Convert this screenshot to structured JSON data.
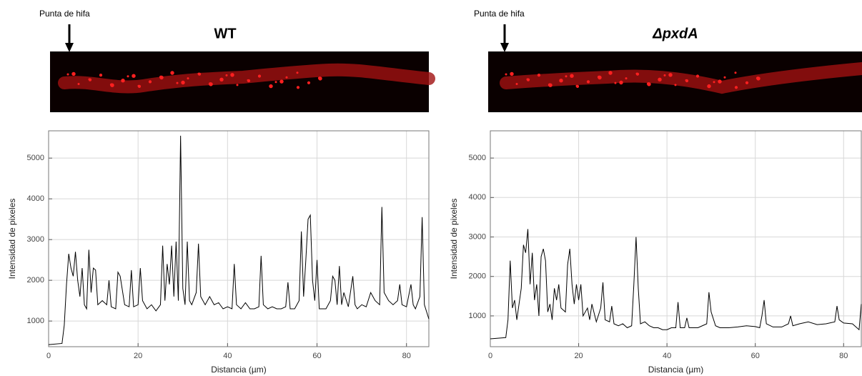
{
  "chart_data": [
    {
      "type": "line",
      "title": "WT",
      "annotation": "Punta de hifa",
      "xlabel": "Distancia (µm)",
      "ylabel": "Intensidad de pixeles",
      "color": "#000000",
      "grid": true,
      "xlim": [
        0,
        85
      ],
      "ylim": [
        370,
        5670
      ],
      "xticks": [
        0,
        20,
        40,
        60,
        80
      ],
      "yticks": [
        1000,
        2000,
        3000,
        4000,
        5000
      ],
      "x": [
        0,
        3,
        3.5,
        4,
        4.5,
        5,
        5.5,
        6,
        6.5,
        7,
        7.5,
        8,
        8.5,
        9,
        9.5,
        10,
        10.5,
        11,
        12,
        13,
        13.5,
        14,
        15,
        15.5,
        16,
        17,
        18,
        18.5,
        19,
        20,
        20.5,
        21,
        22,
        23,
        24,
        25,
        25.5,
        26,
        26.5,
        27,
        27.5,
        28,
        28.5,
        29,
        29.5,
        30,
        30.5,
        31,
        31.5,
        32,
        33,
        33.5,
        34,
        35,
        36,
        37,
        38,
        39,
        40,
        41,
        41.5,
        42,
        43,
        44,
        45,
        46,
        47,
        47.5,
        48,
        49,
        50,
        51,
        52,
        53,
        53.5,
        54,
        55,
        56,
        56.5,
        57,
        57.5,
        58,
        58.5,
        59,
        59.5,
        60,
        60.5,
        61,
        62,
        63,
        63.5,
        64,
        64.5,
        65,
        65.5,
        66,
        67,
        68,
        68.5,
        69,
        70,
        71,
        72,
        73,
        74,
        74.5,
        75,
        76,
        77,
        78,
        78.5,
        79,
        80,
        81,
        81.5,
        82,
        83,
        83.5,
        84,
        85
      ],
      "values": [
        420,
        450,
        900,
        1900,
        2650,
        2300,
        2100,
        2700,
        2000,
        1600,
        2300,
        1400,
        1300,
        2750,
        1700,
        2300,
        2250,
        1400,
        1500,
        1400,
        2000,
        1350,
        1300,
        2200,
        2100,
        1400,
        1350,
        2250,
        1350,
        1400,
        2300,
        1500,
        1300,
        1400,
        1250,
        1400,
        2850,
        1500,
        2400,
        1900,
        2850,
        1600,
        2950,
        1500,
        5550,
        1800,
        1400,
        2950,
        1500,
        1400,
        1700,
        2900,
        1600,
        1400,
        1600,
        1400,
        1450,
        1300,
        1350,
        1300,
        2400,
        1400,
        1300,
        1450,
        1300,
        1300,
        1350,
        2600,
        1400,
        1300,
        1350,
        1300,
        1300,
        1350,
        1950,
        1300,
        1300,
        1500,
        3200,
        1600,
        2500,
        3500,
        3600,
        2000,
        1500,
        2500,
        1300,
        1300,
        1300,
        1500,
        2100,
        2000,
        1400,
        2350,
        1400,
        1700,
        1350,
        2100,
        1400,
        1300,
        1400,
        1350,
        1700,
        1500,
        1400,
        3800,
        1700,
        1500,
        1400,
        1500,
        1900,
        1400,
        1350,
        1900,
        1400,
        1300,
        1600,
        3550,
        1400,
        1050
      ]
    },
    {
      "type": "line",
      "title": "ΔpxdA",
      "annotation": "Punta de hifa",
      "xlabel": "Distancia (µm)",
      "ylabel": "Intensidad de pixeles",
      "color": "#000000",
      "grid": true,
      "xlim": [
        0,
        84
      ],
      "ylim": [
        220,
        5690
      ],
      "xticks": [
        0,
        20,
        40,
        60,
        80
      ],
      "yticks": [
        1000,
        2000,
        3000,
        4000,
        5000
      ],
      "x": [
        0,
        3.5,
        4,
        4.5,
        5,
        5.5,
        6,
        7,
        7.5,
        8,
        8.5,
        9,
        9.5,
        10,
        10.5,
        11,
        11.5,
        12,
        12.5,
        13,
        13.5,
        14,
        14.5,
        15,
        15.5,
        16,
        17,
        17.5,
        18,
        18.5,
        19,
        19.5,
        20,
        20.5,
        21,
        22,
        22.5,
        23,
        24,
        25,
        25.5,
        26,
        27,
        27.5,
        28,
        29,
        30,
        31,
        32,
        32.5,
        33,
        33.5,
        34,
        35,
        36,
        37,
        38,
        39,
        40,
        41,
        42,
        42.5,
        43,
        44,
        44.5,
        45,
        46,
        47,
        48,
        49,
        49.5,
        50,
        51,
        52,
        54,
        56,
        58,
        60,
        61,
        61.5,
        62,
        62.5,
        64,
        66,
        67.5,
        68,
        68.5,
        70,
        72,
        74,
        76,
        78,
        78.5,
        79,
        80,
        82,
        83,
        83.5,
        84
      ],
      "values": [
        420,
        450,
        900,
        2400,
        1200,
        1400,
        900,
        1700,
        2800,
        2600,
        3200,
        1800,
        2600,
        1400,
        1800,
        1000,
        2500,
        2700,
        2400,
        1100,
        1300,
        900,
        1700,
        1400,
        1800,
        1200,
        1100,
        2300,
        2700,
        1800,
        1300,
        1800,
        1400,
        1800,
        1000,
        1200,
        900,
        1300,
        850,
        1200,
        1850,
        900,
        850,
        1250,
        800,
        750,
        800,
        700,
        750,
        1800,
        3000,
        1700,
        800,
        850,
        750,
        700,
        700,
        650,
        650,
        700,
        700,
        1350,
        700,
        700,
        950,
        700,
        700,
        700,
        750,
        800,
        1600,
        1100,
        750,
        700,
        700,
        720,
        750,
        730,
        700,
        1000,
        1400,
        800,
        720,
        720,
        800,
        1000,
        750,
        800,
        850,
        780,
        800,
        850,
        1250,
        900,
        820,
        800,
        700,
        650,
        1300
      ]
    }
  ]
}
